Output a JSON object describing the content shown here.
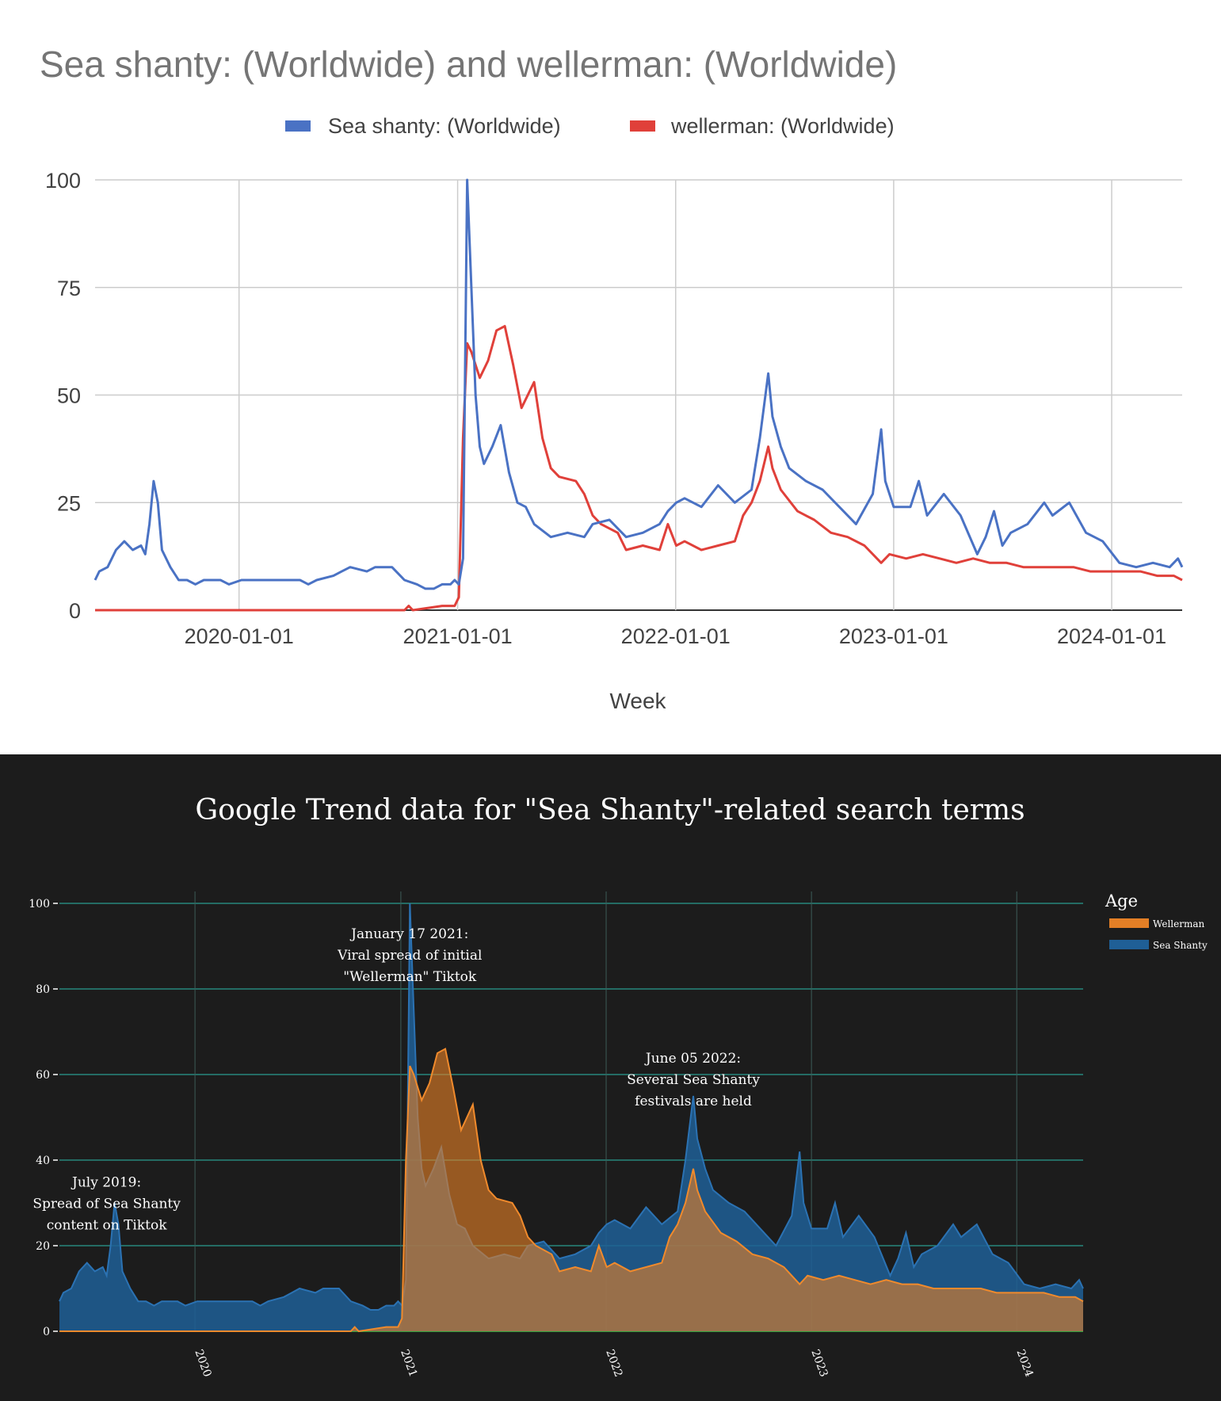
{
  "chart_data": [
    {
      "type": "line",
      "title": "Sea shanty: (Worldwide) and wellerman: (Worldwide)",
      "xlabel": "Week",
      "ylabel": "",
      "ylim": [
        0,
        100
      ],
      "yticks": [
        "0",
        "25",
        "50",
        "75",
        "100"
      ],
      "xticks": [
        "2020-01-01",
        "2021-01-01",
        "2022-01-01",
        "2023-01-01",
        "2024-01-01"
      ],
      "legend_position": "top",
      "grid": true,
      "series": [
        {
          "name": "Sea shanty: (Worldwide)",
          "color": "#4a72c4",
          "points": [
            [
              "2019-05-05",
              7
            ],
            [
              "2019-05-12",
              9
            ],
            [
              "2019-05-26",
              10
            ],
            [
              "2019-06-09",
              14
            ],
            [
              "2019-06-23",
              16
            ],
            [
              "2019-07-07",
              14
            ],
            [
              "2019-07-21",
              15
            ],
            [
              "2019-07-28",
              13
            ],
            [
              "2019-08-04",
              20
            ],
            [
              "2019-08-11",
              30
            ],
            [
              "2019-08-18",
              25
            ],
            [
              "2019-08-25",
              14
            ],
            [
              "2019-09-08",
              10
            ],
            [
              "2019-09-22",
              7
            ],
            [
              "2019-10-06",
              7
            ],
            [
              "2019-10-20",
              6
            ],
            [
              "2019-11-03",
              7
            ],
            [
              "2019-12-01",
              7
            ],
            [
              "2019-12-15",
              6
            ],
            [
              "2020-01-05",
              7
            ],
            [
              "2020-01-19",
              7
            ],
            [
              "2020-02-16",
              7
            ],
            [
              "2020-03-15",
              7
            ],
            [
              "2020-04-12",
              7
            ],
            [
              "2020-04-26",
              6
            ],
            [
              "2020-05-10",
              7
            ],
            [
              "2020-06-07",
              8
            ],
            [
              "2020-06-21",
              9
            ],
            [
              "2020-07-05",
              10
            ],
            [
              "2020-08-02",
              9
            ],
            [
              "2020-08-16",
              10
            ],
            [
              "2020-09-13",
              10
            ],
            [
              "2020-10-04",
              7
            ],
            [
              "2020-10-25",
              6
            ],
            [
              "2020-11-08",
              5
            ],
            [
              "2020-11-22",
              5
            ],
            [
              "2020-12-06",
              6
            ],
            [
              "2020-12-20",
              6
            ],
            [
              "2020-12-27",
              7
            ],
            [
              "2021-01-03",
              6
            ],
            [
              "2021-01-10",
              12
            ],
            [
              "2021-01-17",
              100
            ],
            [
              "2021-01-24",
              75
            ],
            [
              "2021-01-31",
              50
            ],
            [
              "2021-02-07",
              38
            ],
            [
              "2021-02-14",
              34
            ],
            [
              "2021-02-28",
              38
            ],
            [
              "2021-03-14",
              43
            ],
            [
              "2021-03-28",
              32
            ],
            [
              "2021-04-11",
              25
            ],
            [
              "2021-04-25",
              24
            ],
            [
              "2021-05-09",
              20
            ],
            [
              "2021-06-06",
              17
            ],
            [
              "2021-07-04",
              18
            ],
            [
              "2021-08-01",
              17
            ],
            [
              "2021-08-15",
              20
            ],
            [
              "2021-09-12",
              21
            ],
            [
              "2021-10-10",
              17
            ],
            [
              "2021-11-07",
              18
            ],
            [
              "2021-12-05",
              20
            ],
            [
              "2021-12-19",
              23
            ],
            [
              "2022-01-02",
              25
            ],
            [
              "2022-01-16",
              26
            ],
            [
              "2022-02-13",
              24
            ],
            [
              "2022-03-13",
              29
            ],
            [
              "2022-04-10",
              25
            ],
            [
              "2022-05-08",
              28
            ],
            [
              "2022-05-22",
              40
            ],
            [
              "2022-06-05",
              55
            ],
            [
              "2022-06-12",
              45
            ],
            [
              "2022-06-26",
              38
            ],
            [
              "2022-07-10",
              33
            ],
            [
              "2022-08-07",
              30
            ],
            [
              "2022-09-04",
              28
            ],
            [
              "2022-10-02",
              24
            ],
            [
              "2022-10-30",
              20
            ],
            [
              "2022-11-27",
              27
            ],
            [
              "2022-12-11",
              42
            ],
            [
              "2022-12-18",
              30
            ],
            [
              "2023-01-01",
              24
            ],
            [
              "2023-01-29",
              24
            ],
            [
              "2023-02-12",
              30
            ],
            [
              "2023-02-26",
              22
            ],
            [
              "2023-03-26",
              27
            ],
            [
              "2023-04-23",
              22
            ],
            [
              "2023-05-21",
              13
            ],
            [
              "2023-06-04",
              17
            ],
            [
              "2023-06-18",
              23
            ],
            [
              "2023-07-02",
              15
            ],
            [
              "2023-07-16",
              18
            ],
            [
              "2023-08-13",
              20
            ],
            [
              "2023-09-10",
              25
            ],
            [
              "2023-09-24",
              22
            ],
            [
              "2023-10-22",
              25
            ],
            [
              "2023-11-19",
              18
            ],
            [
              "2023-12-17",
              16
            ],
            [
              "2024-01-14",
              11
            ],
            [
              "2024-02-11",
              10
            ],
            [
              "2024-03-10",
              11
            ],
            [
              "2024-04-07",
              10
            ],
            [
              "2024-04-21",
              12
            ],
            [
              "2024-04-28",
              10
            ]
          ]
        },
        {
          "name": "wellerman: (Worldwide)",
          "color": "#e0403a",
          "points": [
            [
              "2019-05-05",
              0
            ],
            [
              "2020-10-04",
              0
            ],
            [
              "2020-10-11",
              1
            ],
            [
              "2020-10-18",
              0
            ],
            [
              "2020-12-06",
              1
            ],
            [
              "2020-12-27",
              1
            ],
            [
              "2021-01-03",
              3
            ],
            [
              "2021-01-10",
              40
            ],
            [
              "2021-01-17",
              62
            ],
            [
              "2021-01-24",
              60
            ],
            [
              "2021-02-07",
              54
            ],
            [
              "2021-02-21",
              58
            ],
            [
              "2021-03-07",
              65
            ],
            [
              "2021-03-21",
              66
            ],
            [
              "2021-04-04",
              57
            ],
            [
              "2021-04-18",
              47
            ],
            [
              "2021-05-09",
              53
            ],
            [
              "2021-05-23",
              40
            ],
            [
              "2021-06-06",
              33
            ],
            [
              "2021-06-20",
              31
            ],
            [
              "2021-07-18",
              30
            ],
            [
              "2021-08-01",
              27
            ],
            [
              "2021-08-15",
              22
            ],
            [
              "2021-08-29",
              20
            ],
            [
              "2021-09-26",
              18
            ],
            [
              "2021-10-10",
              14
            ],
            [
              "2021-11-07",
              15
            ],
            [
              "2021-12-05",
              14
            ],
            [
              "2021-12-19",
              20
            ],
            [
              "2022-01-02",
              15
            ],
            [
              "2022-01-16",
              16
            ],
            [
              "2022-02-13",
              14
            ],
            [
              "2022-03-13",
              15
            ],
            [
              "2022-04-10",
              16
            ],
            [
              "2022-04-24",
              22
            ],
            [
              "2022-05-08",
              25
            ],
            [
              "2022-05-22",
              30
            ],
            [
              "2022-06-05",
              38
            ],
            [
              "2022-06-12",
              33
            ],
            [
              "2022-06-26",
              28
            ],
            [
              "2022-07-24",
              23
            ],
            [
              "2022-08-21",
              21
            ],
            [
              "2022-09-18",
              18
            ],
            [
              "2022-10-16",
              17
            ],
            [
              "2022-11-13",
              15
            ],
            [
              "2022-12-11",
              11
            ],
            [
              "2022-12-25",
              13
            ],
            [
              "2023-01-22",
              12
            ],
            [
              "2023-02-19",
              13
            ],
            [
              "2023-03-19",
              12
            ],
            [
              "2023-04-16",
              11
            ],
            [
              "2023-05-14",
              12
            ],
            [
              "2023-06-11",
              11
            ],
            [
              "2023-07-09",
              11
            ],
            [
              "2023-08-06",
              10
            ],
            [
              "2023-09-03",
              10
            ],
            [
              "2023-10-01",
              10
            ],
            [
              "2023-10-29",
              10
            ],
            [
              "2023-11-26",
              9
            ],
            [
              "2023-12-24",
              9
            ],
            [
              "2024-01-21",
              9
            ],
            [
              "2024-02-18",
              9
            ],
            [
              "2024-03-17",
              8
            ],
            [
              "2024-04-14",
              8
            ],
            [
              "2024-04-28",
              7
            ]
          ]
        }
      ]
    },
    {
      "type": "area",
      "title": "Google Trend data for \"Sea Shanty\"-related search terms",
      "xlabel": "",
      "ylabel": "",
      "ylim": [
        0,
        100
      ],
      "yticks": [
        "0",
        "20",
        "40",
        "60",
        "80",
        "100"
      ],
      "xticks": [
        "2020",
        "2021",
        "2022",
        "2023",
        "2024"
      ],
      "legend_title": "Age",
      "legend_position": "right",
      "grid": true,
      "series": [
        {
          "name": "Wellerman",
          "color": "#e37f26",
          "source": "wellerman: (Worldwide)"
        },
        {
          "name": "Sea Shanty",
          "color": "#1f5f96",
          "source": "Sea shanty: (Worldwide)"
        }
      ],
      "annotations": [
        {
          "date": "2019-07-28",
          "y": 29,
          "lines": [
            "July 2019:",
            "Spread of Sea Shanty",
            "content on Tiktok"
          ]
        },
        {
          "date": "2021-01-17",
          "y": 87,
          "lines": [
            "January 17 2021:",
            "Viral spread of initial",
            "\"Wellerman\" Tiktok"
          ]
        },
        {
          "date": "2022-06-05",
          "y": 58,
          "lines": [
            "June 05 2022:",
            "Several Sea Shanty",
            "festivals are held"
          ]
        }
      ]
    }
  ]
}
